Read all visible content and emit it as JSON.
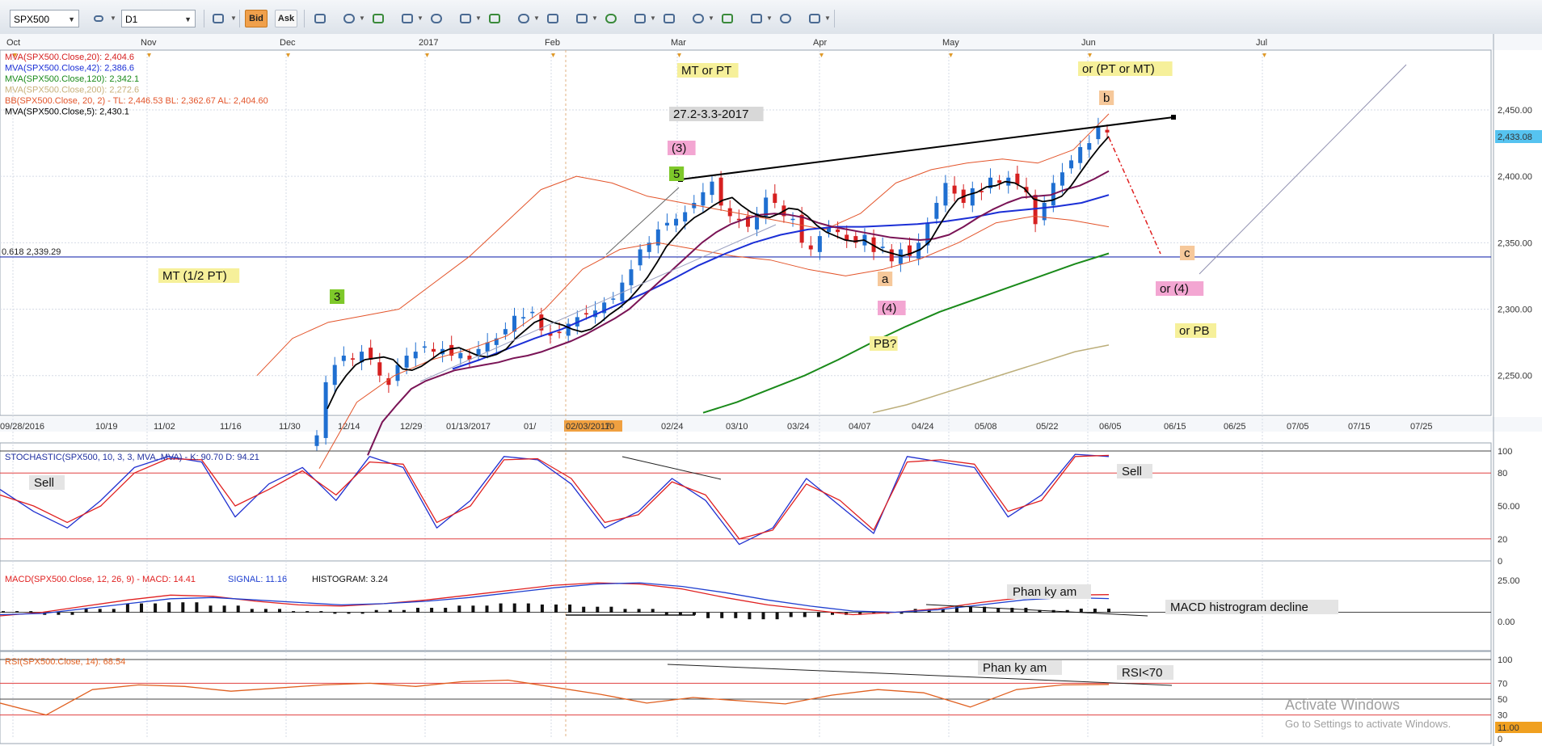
{
  "toolbar": {
    "symbol": "SPX500",
    "timeframe": "D1",
    "bid_label": "Bid",
    "ask_label": "Ask",
    "icons": [
      "crosshair-icon",
      "zoom-in-icon",
      "zoom-out-icon",
      "cursor-icon",
      "chart-type-icon",
      "magnet-icon",
      "globe-icon",
      "ruler-icon",
      "image-icon",
      "template-icon",
      "tools-icon",
      "lines-icon",
      "fan-icon",
      "pencil-icon",
      "shapes-icon",
      "text-abc-icon",
      "eraser-icon",
      "tree-icon"
    ]
  },
  "colors": {
    "bull": "#1f6fd1",
    "bear": "#d62020",
    "ma20": "#7a1456",
    "ma42": "#1b2fd6",
    "ma120": "#1a8a1a",
    "ma200": "#bcae7a",
    "bb": "#e3542a",
    "ma5": "#000000",
    "stoch_k": "#2030d0",
    "stoch_d": "#e02020",
    "macd": "#e02020",
    "signal": "#2040d0",
    "rsi": "#e06020",
    "price_tag": "#56c3f0",
    "rsi_tag": "#f0a020"
  },
  "top_axis": [
    "Oct",
    "Nov",
    "Dec",
    "2017",
    "Feb",
    "Mar",
    "Apr",
    "May",
    "Jun",
    "Jul"
  ],
  "date_axis": [
    "09/28/2016",
    "10/19",
    "11/02",
    "11/16",
    "11/30",
    "12/14",
    "12/29",
    "01/13/2017",
    "01/",
    "02/03/2017",
    "10",
    "02/24",
    "03/10",
    "03/24",
    "04/07",
    "04/24",
    "05/08",
    "05/22",
    "06/05",
    "06/15",
    "06/25",
    "07/05",
    "07/15",
    "07/25"
  ],
  "legend": [
    {
      "text": "MVA(SPX500.Close,20): 2,404.6",
      "color": "#d62020"
    },
    {
      "text": "MVA(SPX500.Close,42): 2,386.6",
      "color": "#1b2fd6"
    },
    {
      "text": "MVA(SPX500.Close,120): 2,342.1",
      "color": "#1a8a1a"
    },
    {
      "text": "MVA(SPX500.Close,200): 2,272.6",
      "color": "#c8b07a"
    },
    {
      "text": "BB(SPX500.Close, 20, 2) -  TL: 2,446.53  BL: 2,362.67  AL: 2,404.60",
      "color": "#e3542a"
    },
    {
      "text": "MVA(SPX500.Close,5): 2,430.1",
      "color": "#000000"
    }
  ],
  "fib_label": "0.618 2,339.29",
  "price_tag": "2,433.08",
  "annotations": [
    {
      "text": "MT or PT",
      "bg": "#f6f09a"
    },
    {
      "text": "27.2-3.3-2017",
      "bg": "#d8d8d8"
    },
    {
      "text": "(3)",
      "bg": "#f3a6d2"
    },
    {
      "text": "5",
      "bg": "#7ec82a"
    },
    {
      "text": "MT (1/2 PT)",
      "bg": "#f6f09a"
    },
    {
      "text": "3",
      "bg": "#7ec82a"
    },
    {
      "text": "a",
      "bg": "#f6c89a"
    },
    {
      "text": "(4)",
      "bg": "#f3a6d2"
    },
    {
      "text": "PB?",
      "bg": "#f6f09a"
    },
    {
      "text": "or (PT or MT)",
      "bg": "#f6f09a"
    },
    {
      "text": "b",
      "bg": "#f6c89a"
    },
    {
      "text": "c",
      "bg": "#f6c89a"
    },
    {
      "text": "or (4)",
      "bg": "#f3a6d2"
    },
    {
      "text": "or PB",
      "bg": "#f6f09a"
    }
  ],
  "stoch": {
    "legend": "STOCHASTIC(SPX500, 10, 3, 3, MVA, MVA) - K: 90.70   D: 94.21",
    "sell_left": "Sell",
    "sell_right": "Sell",
    "levels": [
      "100",
      "80",
      "50.00",
      "20",
      "0"
    ]
  },
  "macd": {
    "legend_main": "MACD(SPX500.Close, 12, 26, 9) -  MACD: 14.41",
    "legend_signal": "SIGNAL: 11.16",
    "legend_hist": "HISTOGRAM: 3.24",
    "note_divergence": "Phan ky am",
    "note_hist": "MACD histrogram decline",
    "levels": [
      "25.00",
      "0.00"
    ]
  },
  "rsi": {
    "legend": "RSI(SPX500.Close, 14): 68.54",
    "note_divergence": "Phan ky am",
    "note_level": "RSI<70",
    "levels": [
      "100",
      "70",
      "50",
      "30",
      "0"
    ],
    "tag": "11.00"
  },
  "watermark": {
    "title": "Activate Windows",
    "subtitle": "Go to Settings to activate Windows."
  },
  "chart_data": {
    "type": "candlestick",
    "symbol": "SPX500",
    "timeframe": "D1",
    "ylim": [
      2220,
      2495
    ],
    "y_ticks": [
      "2,450.00",
      "2,400.00",
      "2,350.00",
      "2,300.00",
      "2,250.00"
    ],
    "last_price": 2433.08,
    "fib_level": 2339.29,
    "ohlc_closes": [
      2205,
      2245,
      2258,
      2265,
      2262,
      2268,
      2262,
      2250,
      2243,
      2258,
      2265,
      2268,
      2272,
      2268,
      2270,
      2265,
      2267,
      2262,
      2270,
      2275,
      2278,
      2285,
      2295,
      2294,
      2298,
      2284,
      2280,
      2282,
      2289,
      2294,
      2296,
      2299,
      2305,
      2308,
      2320,
      2330,
      2345,
      2350,
      2360,
      2365,
      2368,
      2373,
      2380,
      2388,
      2396,
      2378,
      2370,
      2367,
      2362,
      2372,
      2384,
      2380,
      2370,
      2368,
      2350,
      2345,
      2355,
      2362,
      2358,
      2352,
      2350,
      2356,
      2343,
      2347,
      2336,
      2345,
      2340,
      2350,
      2365,
      2380,
      2395,
      2387,
      2380,
      2391,
      2388,
      2399,
      2395,
      2399,
      2394,
      2388,
      2364,
      2380,
      2395,
      2403,
      2412,
      2422,
      2425,
      2437,
      2433
    ],
    "ma5": [
      2225,
      2240,
      2250,
      2258,
      2262,
      2263,
      2264,
      2262,
      2255,
      2254,
      2257,
      2262,
      2267,
      2270,
      2271,
      2268,
      2265,
      2264,
      2266,
      2270,
      2278,
      2284,
      2290,
      2293,
      2290,
      2288,
      2285,
      2283,
      2285,
      2290,
      2296,
      2301,
      2307,
      2315,
      2324,
      2335,
      2347,
      2355,
      2363,
      2369,
      2373,
      2378,
      2382,
      2384,
      2378,
      2373,
      2370,
      2369,
      2372,
      2376,
      2375,
      2370,
      2363,
      2358,
      2355,
      2352,
      2351,
      2352,
      2348,
      2344,
      2342,
      2340,
      2342,
      2345,
      2351,
      2363,
      2374,
      2383,
      2386,
      2388,
      2392,
      2393,
      2396,
      2395,
      2391,
      2383,
      2381,
      2382,
      2385,
      2393,
      2403,
      2413,
      2422,
      2430
    ],
    "ma20_mid": [
      2190,
      2215,
      2228,
      2240,
      2246,
      2250,
      2254,
      2256,
      2258,
      2260,
      2263,
      2265,
      2268,
      2272,
      2276,
      2281,
      2287,
      2293,
      2300,
      2310,
      2320,
      2330,
      2340,
      2350,
      2358,
      2364,
      2368,
      2371,
      2372,
      2371,
      2369,
      2365,
      2362,
      2360,
      2358,
      2356,
      2354,
      2353,
      2352,
      2353,
      2356,
      2362,
      2369,
      2375,
      2380,
      2384,
      2385,
      2386,
      2390,
      2393,
      2398,
      2404
    ],
    "ma42": [
      2255,
      2262,
      2270,
      2278,
      2285,
      2294,
      2303,
      2312,
      2322,
      2333,
      2342,
      2350,
      2356,
      2360,
      2362,
      2362,
      2363,
      2364,
      2366,
      2369,
      2373,
      2375,
      2377,
      2380,
      2386
    ],
    "ma120": [
      2222,
      2230,
      2240,
      2250,
      2262,
      2275,
      2287,
      2298,
      2307,
      2316,
      2325,
      2334,
      2342
    ],
    "ma200": [
      2222,
      2228,
      2236,
      2244,
      2252,
      2260,
      2268,
      2273
    ],
    "bb_upper": [
      2250,
      2278,
      2290,
      2295,
      2300,
      2320,
      2340,
      2365,
      2390,
      2400,
      2395,
      2385,
      2380,
      2375,
      2370,
      2365,
      2360,
      2372,
      2395,
      2405,
      2410,
      2413,
      2410,
      2420,
      2447
    ],
    "bb_lower": [
      2180,
      2230,
      2250,
      2262,
      2270,
      2280,
      2300,
      2330,
      2345,
      2350,
      2345,
      2340,
      2337,
      2330,
      2325,
      2330,
      2338,
      2350,
      2365,
      2370,
      2367,
      2362
    ],
    "stoch_k": [
      65,
      45,
      30,
      55,
      85,
      95,
      90,
      40,
      70,
      85,
      55,
      95,
      85,
      30,
      55,
      95,
      92,
      70,
      30,
      45,
      75,
      55,
      15,
      30,
      75,
      50,
      25,
      95,
      90,
      85,
      40,
      60,
      97,
      95
    ],
    "stoch_d": [
      60,
      50,
      35,
      50,
      80,
      93,
      92,
      50,
      65,
      82,
      60,
      90,
      88,
      35,
      50,
      92,
      93,
      75,
      35,
      42,
      72,
      60,
      20,
      28,
      70,
      55,
      28,
      90,
      92,
      88,
      45,
      55,
      95,
      96
    ],
    "macd": [
      -3,
      0,
      5,
      10,
      14,
      13,
      9,
      6,
      5,
      7,
      10,
      14,
      18,
      22,
      24,
      23,
      19,
      12,
      6,
      2,
      -2,
      0,
      3,
      8,
      12,
      14,
      14.4
    ],
    "signal": [
      -2,
      -1,
      3,
      7,
      11,
      12,
      10,
      8,
      6,
      7,
      9,
      12,
      16,
      20,
      23,
      24,
      21,
      16,
      10,
      5,
      1,
      0,
      2,
      6,
      10,
      12,
      11.16
    ],
    "macd_hist": [
      1,
      -2,
      3,
      8,
      9,
      6,
      3,
      1,
      -1,
      2,
      4,
      6,
      8,
      7,
      5,
      3,
      -2,
      -5,
      -6,
      -4,
      -2,
      -1,
      3,
      5,
      4,
      2,
      3.24
    ],
    "rsi": [
      45,
      30,
      62,
      68,
      66,
      60,
      64,
      68,
      70,
      66,
      72,
      74,
      65,
      56,
      45,
      52,
      48,
      44,
      55,
      62,
      58,
      40,
      62,
      68,
      68.54
    ]
  }
}
